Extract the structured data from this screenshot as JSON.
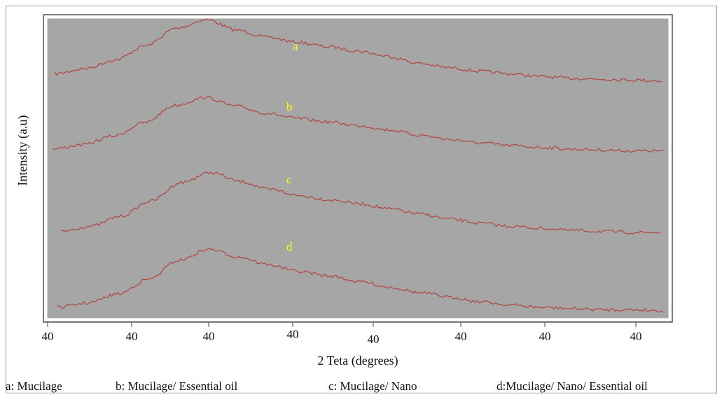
{
  "chart_data": {
    "type": "line",
    "title": "",
    "xlabel": "2 Teta (degrees)",
    "ylabel": "Intensity (a.u)",
    "tick_labels": [
      "40",
      "40",
      "40",
      "40",
      "40",
      "40",
      "40",
      "40"
    ],
    "x": [
      0,
      5,
      10,
      15,
      20,
      25,
      30,
      35,
      40,
      45,
      50,
      55,
      60,
      65,
      70,
      75,
      80,
      85,
      90,
      95,
      100
    ],
    "series": [
      {
        "name": "a",
        "values": [
          18,
          24,
          34,
          50,
          70,
          80,
          68,
          60,
          54,
          49,
          44,
          38,
          30,
          25,
          21,
          18,
          15,
          13,
          12,
          11,
          10
        ]
      },
      {
        "name": "b",
        "values": [
          12,
          17,
          27,
          42,
          62,
          71,
          61,
          53,
          47,
          43,
          39,
          34,
          28,
          23,
          19,
          16,
          14,
          12,
          11,
          10,
          10
        ]
      },
      {
        "name": "c",
        "values": [
          10,
          15,
          25,
          40,
          58,
          68,
          59,
          51,
          45,
          41,
          37,
          32,
          27,
          22,
          18,
          15,
          13,
          11,
          10,
          9,
          9
        ]
      },
      {
        "name": "d",
        "values": [
          8,
          12,
          20,
          33,
          50,
          60,
          53,
          46,
          40,
          36,
          31,
          26,
          21,
          17,
          13,
          10,
          8,
          7,
          6,
          6,
          5
        ]
      }
    ],
    "grid": false,
    "legend": "bottom",
    "colors": {
      "plot_bg": "#a6a6a6",
      "line": "#b04a46",
      "series_label": "#ffff00",
      "text": "#111111"
    }
  },
  "legend_items": [
    "a: Mucilage",
    "b: Mucilage/ Essential oil",
    "c: Mucilage/ Nano",
    "d:Mucilage/ Nano/ Essential oil"
  ]
}
